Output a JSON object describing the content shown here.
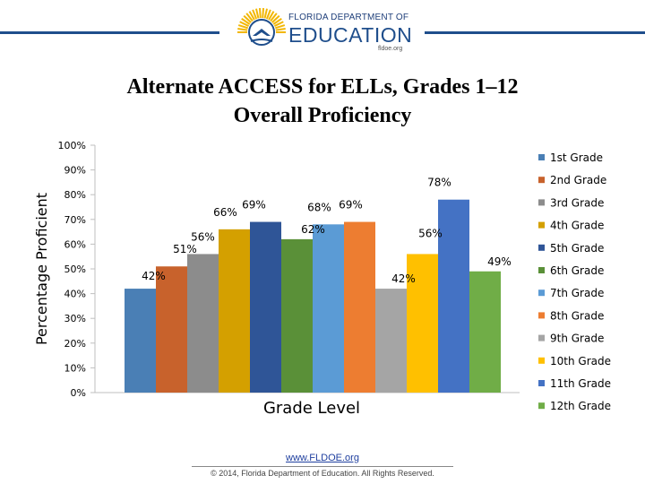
{
  "header": {
    "logo_state": "FLORIDA DEPARTMENT OF",
    "logo_dept": "EDUCATION",
    "logo_site": "fldoe.org"
  },
  "chart_data": {
    "type": "bar",
    "title": "Alternate ACCESS for ELLs, Grades 1–12",
    "subtitle": "Overall Proficiency",
    "xlabel": "Grade Level",
    "ylabel": "Percentage Proficient",
    "ylim": [
      0,
      100
    ],
    "y_ticks": [
      "0%",
      "10%",
      "20%",
      "30%",
      "40%",
      "50%",
      "60%",
      "70%",
      "80%",
      "90%",
      "100%"
    ],
    "grid": false,
    "legend_position": "right",
    "series": [
      {
        "name": "1st Grade",
        "value": 42,
        "label": "42%",
        "color": "#4a7fb5"
      },
      {
        "name": "2nd Grade",
        "value": 51,
        "label": "51%",
        "color": "#c8622c"
      },
      {
        "name": "3rd Grade",
        "value": 56,
        "label": "56%",
        "color": "#8c8c8c"
      },
      {
        "name": "4th Grade",
        "value": 66,
        "label": "66%",
        "color": "#d4a000"
      },
      {
        "name": "5th Grade",
        "value": 69,
        "label": "69%",
        "color": "#2f5597"
      },
      {
        "name": "6th Grade",
        "value": 62,
        "label": "62%",
        "color": "#5a9038"
      },
      {
        "name": "7th Grade",
        "value": 68,
        "label": "68%",
        "color": "#5b9bd5"
      },
      {
        "name": "8th Grade",
        "value": 69,
        "label": "69%",
        "color": "#ed7d31"
      },
      {
        "name": "9th Grade",
        "value": 42,
        "label": "42%",
        "color": "#a5a5a5"
      },
      {
        "name": "10th Grade",
        "value": 56,
        "label": "56%",
        "color": "#ffc000"
      },
      {
        "name": "11th Grade",
        "value": 78,
        "label": "78%",
        "color": "#4472c4"
      },
      {
        "name": "12th Grade",
        "value": 49,
        "label": "49%",
        "color": "#70ad47"
      }
    ]
  },
  "footer": {
    "link": "www.FLDOE.org",
    "copyright": "© 2014, Florida Department of Education. All Rights Reserved."
  }
}
